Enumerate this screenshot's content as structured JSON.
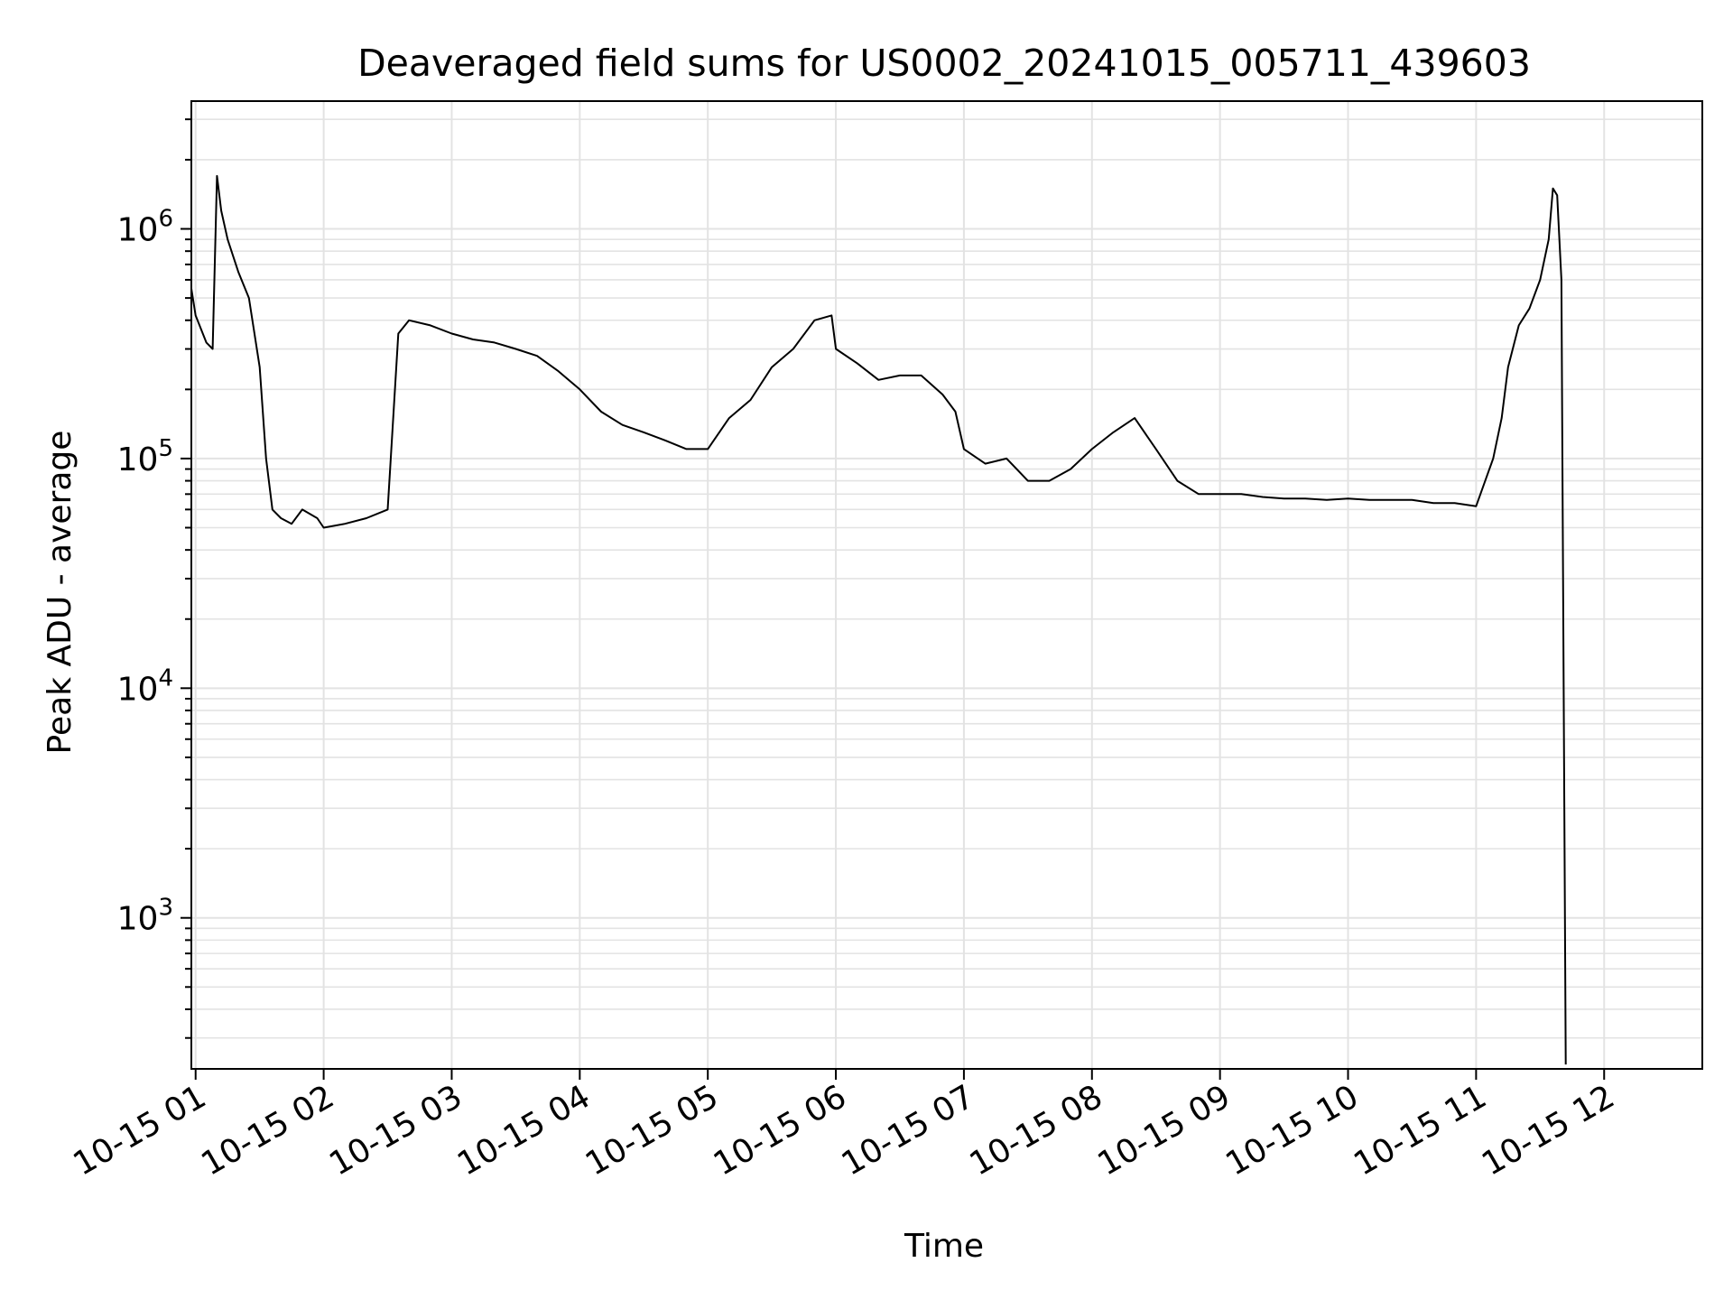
{
  "chart_data": {
    "type": "line",
    "title": "Deaveraged field sums for US0002_20241015_005711_439603",
    "xlabel": "Time",
    "ylabel": "Peak ADU - average",
    "y_scale": "log",
    "x_range": [
      "2024-10-15 00:58",
      "2024-10-15 12:46"
    ],
    "ylim": [
      220,
      3600000
    ],
    "grid": "major and minor, light gray",
    "line_color": "#000000",
    "x_ticks": [
      {
        "time": "2024-10-15 01:00",
        "label": "10-15 01"
      },
      {
        "time": "2024-10-15 02:00",
        "label": "10-15 02"
      },
      {
        "time": "2024-10-15 03:00",
        "label": "10-15 03"
      },
      {
        "time": "2024-10-15 04:00",
        "label": "10-15 04"
      },
      {
        "time": "2024-10-15 05:00",
        "label": "10-15 05"
      },
      {
        "time": "2024-10-15 06:00",
        "label": "10-15 06"
      },
      {
        "time": "2024-10-15 07:00",
        "label": "10-15 07"
      },
      {
        "time": "2024-10-15 08:00",
        "label": "10-15 08"
      },
      {
        "time": "2024-10-15 09:00",
        "label": "10-15 09"
      },
      {
        "time": "2024-10-15 10:00",
        "label": "10-15 10"
      },
      {
        "time": "2024-10-15 11:00",
        "label": "10-15 11"
      },
      {
        "time": "2024-10-15 12:00",
        "label": "10-15 12"
      }
    ],
    "y_ticks": [
      {
        "value": 1000,
        "base": "10",
        "exp": "3"
      },
      {
        "value": 10000,
        "base": "10",
        "exp": "4"
      },
      {
        "value": 100000,
        "base": "10",
        "exp": "5"
      },
      {
        "value": 1000000,
        "base": "10",
        "exp": "6"
      }
    ],
    "series": [
      {
        "x": [
          "2024-10-15 00:58",
          "2024-10-15 01:00",
          "2024-10-15 01:05",
          "2024-10-15 01:08",
          "2024-10-15 01:10",
          "2024-10-15 01:12",
          "2024-10-15 01:15",
          "2024-10-15 01:20",
          "2024-10-15 01:25",
          "2024-10-15 01:30",
          "2024-10-15 01:33",
          "2024-10-15 01:36",
          "2024-10-15 01:40",
          "2024-10-15 01:45",
          "2024-10-15 01:50",
          "2024-10-15 01:57",
          "2024-10-15 02:00",
          "2024-10-15 02:10",
          "2024-10-15 02:20",
          "2024-10-15 02:30",
          "2024-10-15 02:35",
          "2024-10-15 02:40",
          "2024-10-15 02:50",
          "2024-10-15 03:00",
          "2024-10-15 03:10",
          "2024-10-15 03:20",
          "2024-10-15 03:30",
          "2024-10-15 03:40",
          "2024-10-15 03:50",
          "2024-10-15 04:00",
          "2024-10-15 04:10",
          "2024-10-15 04:20",
          "2024-10-15 04:30",
          "2024-10-15 04:40",
          "2024-10-15 04:50",
          "2024-10-15 05:00",
          "2024-10-15 05:10",
          "2024-10-15 05:20",
          "2024-10-15 05:30",
          "2024-10-15 05:40",
          "2024-10-15 05:50",
          "2024-10-15 05:58",
          "2024-10-15 06:00",
          "2024-10-15 06:10",
          "2024-10-15 06:20",
          "2024-10-15 06:30",
          "2024-10-15 06:40",
          "2024-10-15 06:50",
          "2024-10-15 06:56",
          "2024-10-15 07:00",
          "2024-10-15 07:10",
          "2024-10-15 07:20",
          "2024-10-15 07:30",
          "2024-10-15 07:40",
          "2024-10-15 07:50",
          "2024-10-15 08:00",
          "2024-10-15 08:10",
          "2024-10-15 08:20",
          "2024-10-15 08:30",
          "2024-10-15 08:40",
          "2024-10-15 08:50",
          "2024-10-15 09:00",
          "2024-10-15 09:10",
          "2024-10-15 09:20",
          "2024-10-15 09:30",
          "2024-10-15 09:40",
          "2024-10-15 09:50",
          "2024-10-15 10:00",
          "2024-10-15 10:10",
          "2024-10-15 10:20",
          "2024-10-15 10:30",
          "2024-10-15 10:40",
          "2024-10-15 10:50",
          "2024-10-15 11:00",
          "2024-10-15 11:08",
          "2024-10-15 11:12",
          "2024-10-15 11:15",
          "2024-10-15 11:20",
          "2024-10-15 11:25",
          "2024-10-15 11:30",
          "2024-10-15 11:34",
          "2024-10-15 11:36",
          "2024-10-15 11:38",
          "2024-10-15 11:40",
          "2024-10-15 11:42"
        ],
        "y": [
          550000,
          420000,
          320000,
          300000,
          1700000,
          1200000,
          900000,
          650000,
          500000,
          250000,
          100000,
          60000,
          55000,
          52000,
          60000,
          55000,
          50000,
          52000,
          55000,
          60000,
          350000,
          400000,
          380000,
          350000,
          330000,
          320000,
          300000,
          280000,
          240000,
          200000,
          160000,
          140000,
          130000,
          120000,
          110000,
          110000,
          150000,
          180000,
          250000,
          300000,
          400000,
          420000,
          300000,
          260000,
          220000,
          230000,
          230000,
          190000,
          160000,
          110000,
          95000,
          100000,
          80000,
          80000,
          90000,
          110000,
          130000,
          150000,
          110000,
          80000,
          70000,
          70000,
          70000,
          68000,
          67000,
          67000,
          66000,
          67000,
          66000,
          66000,
          66000,
          64000,
          64000,
          62000,
          100000,
          150000,
          250000,
          380000,
          450000,
          600000,
          900000,
          1500000,
          1400000,
          600000,
          230
        ]
      }
    ]
  }
}
